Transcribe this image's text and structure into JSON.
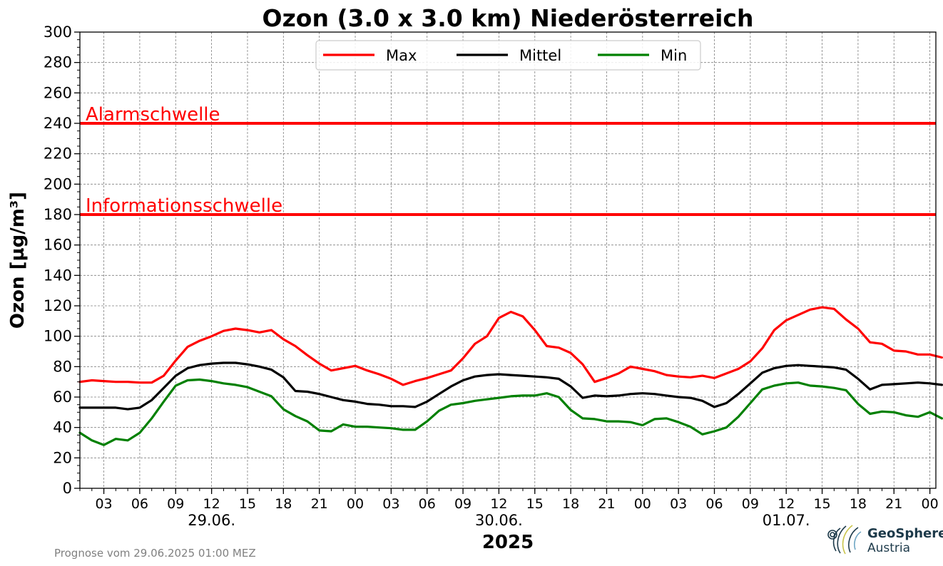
{
  "chart_data": {
    "type": "line",
    "title": "Ozon (3.0 x 3.0 km) Niederösterreich",
    "ylabel": "Ozon [µg/m³]",
    "xlabel": "2025",
    "ylim": [
      0,
      300
    ],
    "yticks": [
      0,
      20,
      40,
      60,
      80,
      100,
      120,
      140,
      160,
      180,
      200,
      220,
      240,
      260,
      280,
      300
    ],
    "x_start": "2025-06-29 01:00",
    "x_end": "2025-07-02 00:30",
    "x_step_hours": 1,
    "xtick_labels": [
      "03",
      "06",
      "09",
      "12",
      "15",
      "18",
      "21",
      "00",
      "03",
      "06",
      "09",
      "12",
      "15",
      "18",
      "21",
      "00",
      "03",
      "06",
      "09",
      "12",
      "15",
      "18",
      "21",
      "00"
    ],
    "day_labels": [
      "29.06.",
      "30.06.",
      "01.07."
    ],
    "grid": true,
    "legend": {
      "placement": "top-center",
      "columns": 3
    },
    "thresholds": [
      {
        "label": "Alarmschwelle",
        "value": 240,
        "color": "#ff0000"
      },
      {
        "label": "Informationsschwelle",
        "value": 180,
        "color": "#ff0000"
      }
    ],
    "series": [
      {
        "name": "Max",
        "color": "#ff0000",
        "values": [
          70,
          71,
          70.5,
          70,
          70,
          69.5,
          69.5,
          74,
          84,
          93,
          97,
          100,
          103.5,
          105,
          104,
          102.5,
          104,
          98,
          93.5,
          87.5,
          82,
          77.5,
          79,
          80.5,
          77.5,
          75,
          72,
          68,
          70.5,
          72.5,
          75,
          77.5,
          85.5,
          95,
          100,
          112,
          116,
          113,
          104,
          93.5,
          92.5,
          89,
          81.5,
          70,
          72.5,
          75.5,
          80,
          78.5,
          77,
          74.5,
          73.5,
          73,
          74,
          72.5,
          75.5,
          78.5,
          83.5,
          92,
          104,
          110.5,
          114,
          117.5,
          119,
          118,
          111,
          105,
          96,
          95,
          90.5,
          90,
          88,
          88,
          86
        ]
      },
      {
        "name": "Mittel",
        "color": "#000000",
        "values": [
          53,
          53,
          53,
          53,
          52,
          53,
          58,
          66,
          74,
          79,
          81,
          82,
          82.5,
          82.5,
          81.5,
          80,
          78,
          73,
          64,
          63.5,
          62,
          60,
          58,
          57,
          55.5,
          55,
          54,
          54,
          53.5,
          57,
          62,
          67,
          71,
          73.5,
          74.5,
          75,
          74.5,
          74,
          73.5,
          73,
          72,
          67,
          59.5,
          61,
          60.5,
          61,
          62,
          62.5,
          62,
          61,
          60,
          59.5,
          57.5,
          53.5,
          56,
          62,
          69,
          76,
          79,
          80.5,
          81,
          80.5,
          80,
          79.5,
          78,
          72,
          65,
          68,
          68.5,
          69,
          69.5,
          69,
          68
        ]
      },
      {
        "name": "Min",
        "color": "#008000",
        "values": [
          36.5,
          31.5,
          28.5,
          32.5,
          31.5,
          36.5,
          46,
          57,
          67.5,
          71,
          71.5,
          70.5,
          69,
          68,
          66.5,
          63.5,
          60.5,
          52,
          47.5,
          44,
          38,
          37.5,
          42,
          40.5,
          40.5,
          40,
          39.5,
          38.5,
          38.5,
          44,
          51,
          55,
          56,
          57.5,
          58.5,
          59.5,
          60.5,
          61,
          61,
          62.5,
          60,
          51.5,
          46,
          45.5,
          44,
          44,
          43.5,
          41.5,
          45.5,
          46,
          43.5,
          40.5,
          35.5,
          37.5,
          40,
          47,
          56,
          65,
          67.5,
          69,
          69.5,
          67.5,
          67,
          66,
          64.5,
          55.5,
          49,
          50.5,
          50,
          48,
          47,
          50,
          46
        ]
      }
    ]
  },
  "footer": {
    "text": "Prognose vom 29.06.2025 01:00 MEZ"
  },
  "logo": {
    "name": "GeoSphere",
    "sub": "Austria"
  }
}
